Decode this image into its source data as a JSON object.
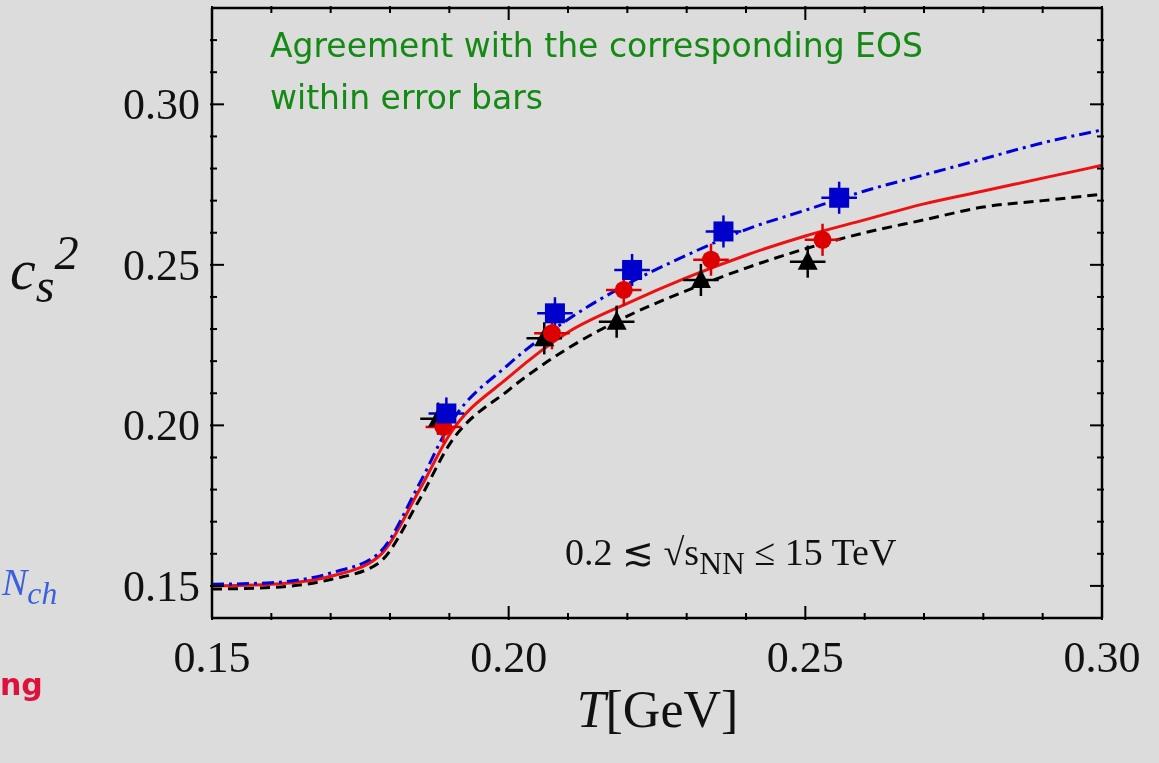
{
  "chart_data": {
    "type": "line",
    "xlabel": "T[GeV]",
    "ylabel": "c$_{s}$$^{2}$",
    "xlim": [
      0.15,
      0.3
    ],
    "ylim": [
      0.14,
      0.33
    ],
    "xticks": [
      0.15,
      {
        "value": 0.16,
        "label": null
      },
      {
        "value": 0.17,
        "label": null
      },
      {
        "value": 0.18,
        "label": null
      },
      {
        "value": 0.19,
        "label": null
      },
      {
        "value": 0.2,
        "label": "0.20"
      },
      {
        "value": 0.21,
        "label": null
      },
      {
        "value": 0.22,
        "label": null
      },
      {
        "value": 0.23,
        "label": null
      },
      {
        "value": 0.24,
        "label": null
      },
      0.25,
      {
        "value": 0.26,
        "label": null
      },
      {
        "value": 0.27,
        "label": null
      },
      {
        "value": 0.28,
        "label": null
      },
      {
        "value": 0.29,
        "label": null
      },
      {
        "value": 0.3,
        "label": "0.30"
      }
    ],
    "yticks": [
      0.15,
      {
        "value": 0.16,
        "label": null
      },
      {
        "value": 0.17,
        "label": null
      },
      {
        "value": 0.18,
        "label": null
      },
      {
        "value": 0.19,
        "label": null
      },
      {
        "value": 0.2,
        "label": "0.20"
      },
      {
        "value": 0.21,
        "label": null
      },
      {
        "value": 0.22,
        "label": null
      },
      {
        "value": 0.23,
        "label": null
      },
      {
        "value": 0.24,
        "label": null
      },
      0.25,
      {
        "value": 0.26,
        "label": null
      },
      {
        "value": 0.27,
        "label": null
      },
      {
        "value": 0.28,
        "label": null
      },
      {
        "value": 0.29,
        "label": null
      },
      {
        "value": 0.3,
        "label": "0.30"
      },
      {
        "value": 0.31,
        "label": null
      },
      {
        "value": 0.32,
        "label": null
      }
    ],
    "grid": false,
    "series": [
      {
        "color": "#000000",
        "line_style": "dashed",
        "x": [
          0.15,
          0.16,
          0.17,
          0.178,
          0.185,
          0.19,
          0.2,
          0.21,
          0.22,
          0.23,
          0.24,
          0.25,
          0.26,
          0.27,
          0.28,
          0.29,
          0.3
        ],
        "values": [
          0.149,
          0.1495,
          0.152,
          0.157,
          0.177,
          0.194,
          0.211,
          0.224,
          0.234,
          0.242,
          0.249,
          0.255,
          0.26,
          0.264,
          0.268,
          0.27,
          0.272
        ]
      },
      {
        "color": "#ee1111",
        "line_style": "solid",
        "x": [
          0.15,
          0.16,
          0.17,
          0.178,
          0.185,
          0.19,
          0.2,
          0.21,
          0.22,
          0.23,
          0.24,
          0.25,
          0.26,
          0.27,
          0.28,
          0.29,
          0.3
        ],
        "values": [
          0.15,
          0.1505,
          0.153,
          0.159,
          0.18,
          0.197,
          0.215,
          0.229,
          0.238,
          0.246,
          0.253,
          0.259,
          0.264,
          0.269,
          0.273,
          0.277,
          0.281
        ]
      },
      {
        "color": "#0000dd",
        "line_style": "dashdot",
        "x": [
          0.15,
          0.16,
          0.17,
          0.178,
          0.185,
          0.19,
          0.2,
          0.21,
          0.22,
          0.23,
          0.24,
          0.25,
          0.26,
          0.27,
          0.28,
          0.29,
          0.3
        ],
        "values": [
          0.1505,
          0.151,
          0.154,
          0.16,
          0.182,
          0.2,
          0.219,
          0.233,
          0.244,
          0.253,
          0.261,
          0.267,
          0.273,
          0.278,
          0.283,
          0.288,
          0.292
        ]
      },
      {
        "type": "scatter",
        "color": "#000000",
        "marker": "triangle",
        "x": [
          0.1881,
          0.206,
          0.2182,
          0.2324,
          0.2504
        ],
        "values": [
          0.2021,
          0.2271,
          0.2323,
          0.2453,
          0.251
        ],
        "errors": [
          0.005,
          0.005,
          0.005,
          0.005,
          0.005
        ],
        "xerrors": [
          0.003,
          0.003,
          0.003,
          0.003,
          0.003
        ]
      },
      {
        "type": "scatter",
        "color": "#dd0000",
        "marker": "circle",
        "x": [
          0.189,
          0.2073,
          0.2194,
          0.2341,
          0.2529
        ],
        "values": [
          0.1995,
          0.2287,
          0.2422,
          0.2516,
          0.2578
        ],
        "errors": [
          0.005,
          0.005,
          0.005,
          0.005,
          0.005
        ],
        "xerrors": [
          0.003,
          0.003,
          0.003,
          0.003,
          0.003
        ]
      },
      {
        "type": "scatter",
        "color": "#0000cc",
        "marker": "square",
        "x": [
          0.1895,
          0.2078,
          0.2208,
          0.2362,
          0.2557
        ],
        "values": [
          0.2037,
          0.2349,
          0.2484,
          0.2604,
          0.2709
        ],
        "errors": [
          0.005,
          0.005,
          0.005,
          0.005,
          0.005
        ],
        "xerrors": [
          0.003,
          0.003,
          0.003,
          0.003,
          0.003
        ]
      }
    ],
    "annotations": [
      "Agreement with the corresponding EOS within error bars",
      "0.2 ≲ √s$_{NN}$ ≤ 15 TeV",
      "N$_{ch}$",
      "ng"
    ]
  }
}
